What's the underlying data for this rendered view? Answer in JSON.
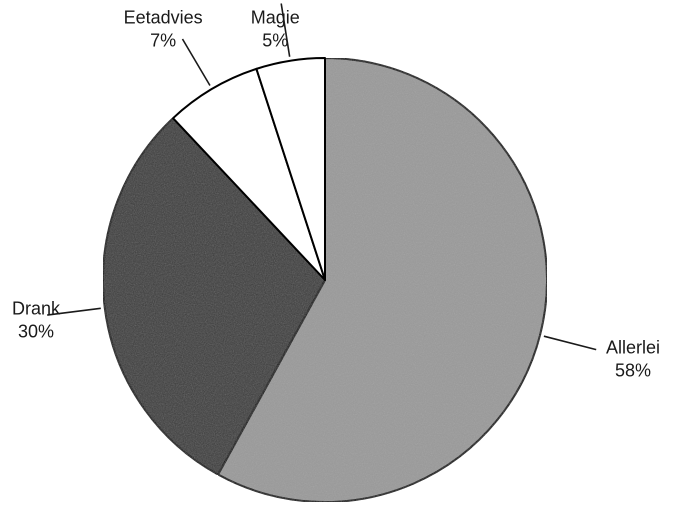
{
  "chart_data": {
    "type": "pie",
    "title": "",
    "start_angle_deg": 0,
    "direction": "clockwise",
    "slices": [
      {
        "name": "Allerlei",
        "value": 58,
        "label": "58%",
        "color": "#9a9a9a"
      },
      {
        "name": "Drank",
        "value": 30,
        "label": "30%",
        "color": "#3a3a3a"
      },
      {
        "name": "Eetadvies",
        "value": 7,
        "label": "7%",
        "color": "#ffffff"
      },
      {
        "name": "Magie",
        "value": 5,
        "label": "5%",
        "color": "#ffffff"
      }
    ],
    "edge_color": "#000000",
    "leader_line_color": "#1a1a1a"
  }
}
